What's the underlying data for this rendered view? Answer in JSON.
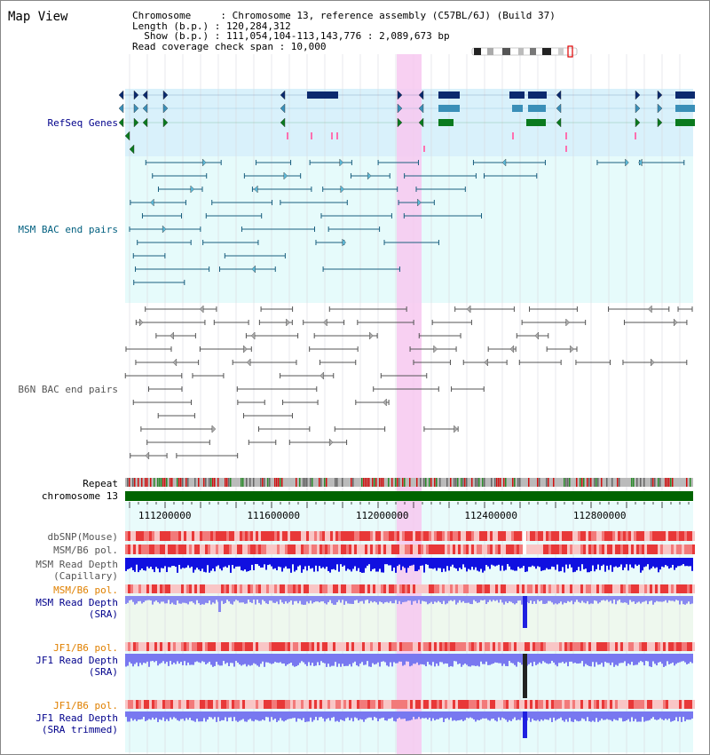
{
  "header": {
    "title": "Map View",
    "info_lines": [
      "Chromosome     : Chromosome 13, reference assembly (C57BL/6J) (Build 37)",
      "Length (b.p.) : 120,284,312",
      "  Show (b.p.) : 111,054,104-113,143,776 : 2,089,673 bp",
      "Read coverage check span : 10,000"
    ]
  },
  "tracks": {
    "refseq": "RefSeq Genes",
    "msm_bac": "MSM BAC end pairs",
    "b6n_bac": "B6N BAC end pairs",
    "repeat": "Repeat",
    "chromosome": "chromosome 13",
    "dbsnp": "dbSNP(Mouse)",
    "msm_b6_pol_1": "MSM/B6 pol.",
    "msm_depth_cap_1": "MSM Read Depth",
    "msm_depth_cap_2": "(Capillary)",
    "msm_b6_pol_2": "MSM/B6 pol.",
    "msm_depth_sra_1": "MSM Read Depth",
    "msm_depth_sra_2": "(SRA)",
    "jf1_b6_pol_1": "JF1/B6 pol.",
    "jf1_depth_sra_1": "JF1 Read Depth",
    "jf1_depth_sra_2": "(SRA)",
    "jf1_b6_pol_2": "JF1/B6 pol.",
    "jf1_depth_trim_1": "JF1 Read Depth",
    "jf1_depth_trim_2": "(SRA trimmed)"
  },
  "axis": {
    "ticks": [
      "111200000",
      "111600000",
      "112000000",
      "112400000",
      "112800000"
    ],
    "ticks_bp": [
      111200000,
      111600000,
      112000000,
      112400000,
      112800000
    ],
    "view_start_bp": 111054104,
    "view_end_bp": 113143776
  },
  "colors": {
    "label_blue": "#00008b",
    "label_teal": "#005f7f",
    "label_gray": "#555555",
    "label_orange": "#e08000",
    "highlight_pink": "#f7c8f0",
    "refseq_bg": "#d9f1fb",
    "bac_bg": "#e6fbfb",
    "chromosome_green": "#006400",
    "depth_dark_blue": "#1010e0",
    "depth_light_blue": "#7878f0"
  }
}
